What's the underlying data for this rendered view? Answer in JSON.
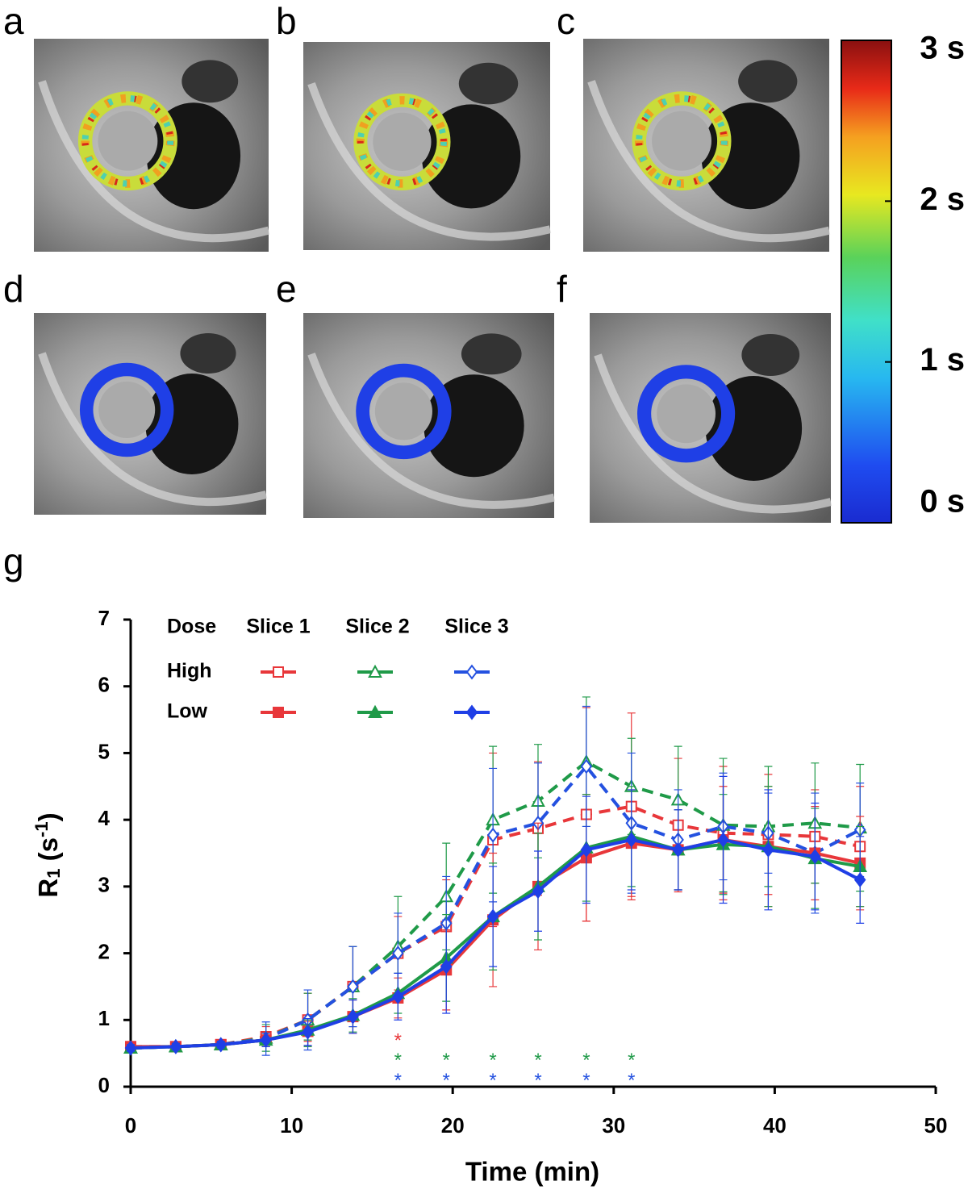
{
  "figure": {
    "panels": [
      {
        "label": "a",
        "state": "pre"
      },
      {
        "label": "b",
        "state": "pre"
      },
      {
        "label": "c",
        "state": "pre"
      },
      {
        "label": "d",
        "state": "post"
      },
      {
        "label": "e",
        "state": "post"
      },
      {
        "label": "f",
        "state": "post"
      }
    ],
    "colorbar": {
      "clim": [
        0,
        3
      ],
      "ticks": [
        {
          "value": 3,
          "label": "3 s"
        },
        {
          "value": 2,
          "label": "2 s"
        },
        {
          "value": 1,
          "label": "1 s"
        },
        {
          "value": 0,
          "label": "0 s"
        }
      ]
    }
  },
  "chart_data": {
    "type": "line",
    "panel_label": "g",
    "xlabel": "Time (min)",
    "ylabel_parts": [
      "R",
      "1",
      " (s",
      "-1",
      ")"
    ],
    "xlim": [
      0,
      50
    ],
    "xticks": [
      0,
      10,
      20,
      30,
      40,
      50
    ],
    "ylim": [
      0,
      7
    ],
    "yticks": [
      0,
      1,
      2,
      3,
      4,
      5,
      6,
      7
    ],
    "legend": {
      "header": "Dose",
      "columns": [
        "Slice 1",
        "Slice 2",
        "Slice 3"
      ],
      "rows": [
        "High",
        "Low"
      ]
    },
    "x": [
      0,
      2.8,
      5.6,
      8.4,
      11,
      13.8,
      16.6,
      19.6,
      22.5,
      25.3,
      28.3,
      31.1,
      34,
      36.8,
      39.6,
      42.5,
      45.3
    ],
    "series": [
      {
        "legend_row": 0,
        "legend_col": 0,
        "color": "#e8373a",
        "marker": "square",
        "filled": false,
        "dashed": true,
        "values": [
          0.6,
          0.6,
          0.63,
          0.75,
          1.0,
          1.5,
          2.0,
          2.4,
          3.7,
          3.87,
          4.08,
          4.2,
          3.92,
          3.8,
          3.78,
          3.75,
          3.6
        ],
        "errors": [
          0.05,
          0.05,
          0.05,
          0.15,
          0.4,
          0.6,
          0.55,
          0.7,
          1.3,
          1.0,
          1.6,
          1.4,
          1.0,
          1.0,
          0.9,
          0.7,
          0.9
        ]
      },
      {
        "legend_row": 0,
        "legend_col": 1,
        "color": "#1f9a48",
        "marker": "triangle",
        "filled": false,
        "dashed": true,
        "values": [
          0.58,
          0.6,
          0.63,
          0.73,
          1.0,
          1.5,
          2.1,
          2.85,
          4.0,
          4.28,
          4.87,
          4.5,
          4.3,
          3.92,
          3.9,
          3.95,
          3.88
        ],
        "errors": [
          0.05,
          0.05,
          0.05,
          0.2,
          0.4,
          0.6,
          0.75,
          0.8,
          1.1,
          0.85,
          0.97,
          0.72,
          0.8,
          1.0,
          0.9,
          0.9,
          0.95
        ]
      },
      {
        "legend_row": 0,
        "legend_col": 2,
        "color": "#2451e0",
        "marker": "diamond",
        "filled": false,
        "dashed": true,
        "values": [
          0.58,
          0.6,
          0.63,
          0.72,
          1.0,
          1.5,
          2.0,
          2.45,
          3.77,
          3.95,
          4.8,
          3.95,
          3.7,
          3.9,
          3.8,
          3.5,
          3.85
        ],
        "errors": [
          0.05,
          0.05,
          0.05,
          0.25,
          0.45,
          0.6,
          0.6,
          0.7,
          1.0,
          0.9,
          0.9,
          1.05,
          0.75,
          0.8,
          0.6,
          0.9,
          0.7
        ]
      },
      {
        "legend_row": 1,
        "legend_col": 0,
        "color": "#e8373a",
        "marker": "square",
        "filled": true,
        "dashed": false,
        "values": [
          0.6,
          0.6,
          0.63,
          0.7,
          0.83,
          1.05,
          1.33,
          1.75,
          2.5,
          3.0,
          3.43,
          3.65,
          3.55,
          3.7,
          3.6,
          3.5,
          3.35
        ],
        "errors": [
          0.05,
          0.05,
          0.05,
          0.1,
          0.15,
          0.25,
          0.3,
          0.6,
          1.0,
          0.95,
          0.95,
          0.8,
          0.6,
          0.8,
          0.9,
          0.7,
          0.7
        ]
      },
      {
        "legend_row": 1,
        "legend_col": 1,
        "color": "#1f9a48",
        "marker": "triangle",
        "filled": true,
        "dashed": false,
        "values": [
          0.58,
          0.6,
          0.63,
          0.7,
          0.85,
          1.07,
          1.4,
          1.93,
          2.55,
          3.0,
          3.58,
          3.75,
          3.55,
          3.63,
          3.6,
          3.42,
          3.3
        ],
        "errors": [
          0.05,
          0.05,
          0.05,
          0.1,
          0.15,
          0.25,
          0.3,
          0.65,
          0.8,
          0.8,
          0.8,
          0.75,
          0.6,
          0.75,
          0.9,
          0.75,
          0.6
        ]
      },
      {
        "legend_row": 1,
        "legend_col": 2,
        "color": "#1f3fe6",
        "marker": "diamond",
        "filled": true,
        "dashed": false,
        "values": [
          0.58,
          0.6,
          0.63,
          0.7,
          0.82,
          1.05,
          1.35,
          1.8,
          2.55,
          2.93,
          3.55,
          3.7,
          3.55,
          3.7,
          3.55,
          3.45,
          3.1
        ],
        "errors": [
          0.05,
          0.05,
          0.05,
          0.1,
          0.2,
          0.25,
          0.35,
          0.7,
          0.75,
          0.6,
          0.8,
          0.75,
          0.6,
          0.95,
          0.9,
          0.8,
          0.65
        ]
      }
    ],
    "annotations": [
      {
        "text": "*",
        "color": "#e8373a",
        "y": 0.75,
        "x": [
          16.6
        ]
      },
      {
        "text": "*",
        "color": "#1f9a48",
        "y": 0.45,
        "x": [
          16.6,
          19.6,
          22.5,
          25.3,
          28.3,
          31.1
        ]
      },
      {
        "text": "*",
        "color": "#2451e0",
        "y": 0.15,
        "x": [
          16.6,
          19.6,
          22.5,
          25.3,
          28.3,
          31.1
        ]
      }
    ]
  }
}
